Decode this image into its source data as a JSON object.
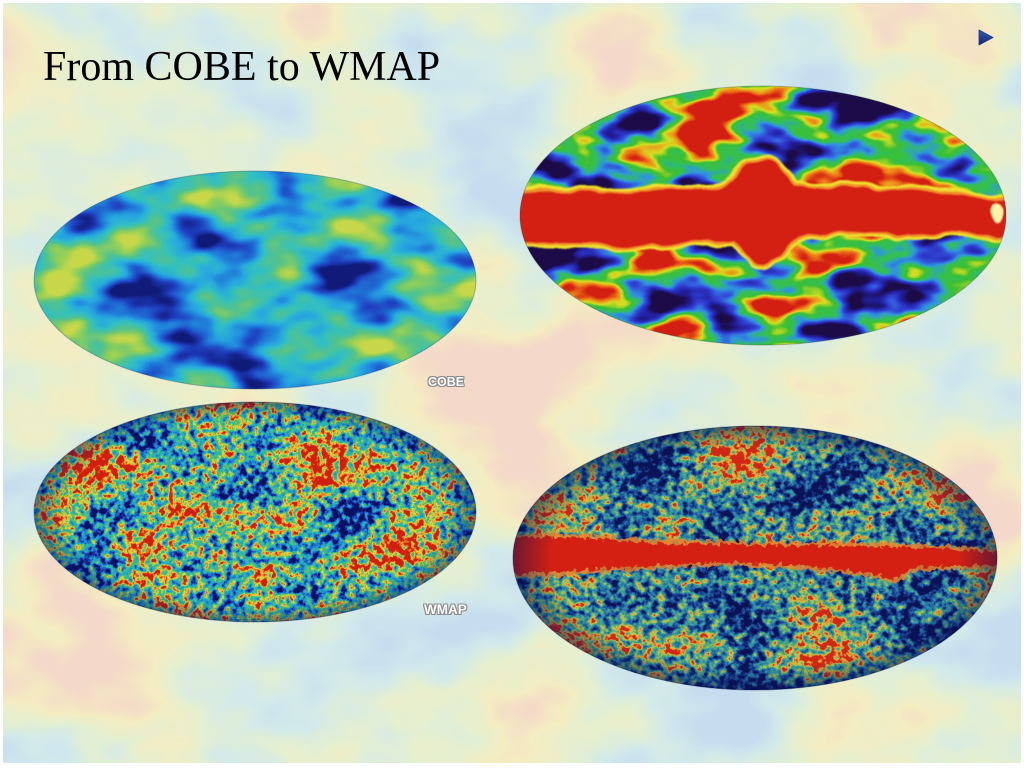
{
  "slide": {
    "title": "From COBE to WMAP",
    "labels": {
      "cobe": "COBE",
      "wmap": "WMAP"
    }
  },
  "icons": {
    "next_slide": "play-arrow-icon"
  },
  "colors": {
    "title_text": "#000000",
    "next_slide_icon": "#1f3a8a",
    "label_text": "#ffffff",
    "label_outline": "#8c8c8c",
    "galactic_band": "#d42012"
  }
}
